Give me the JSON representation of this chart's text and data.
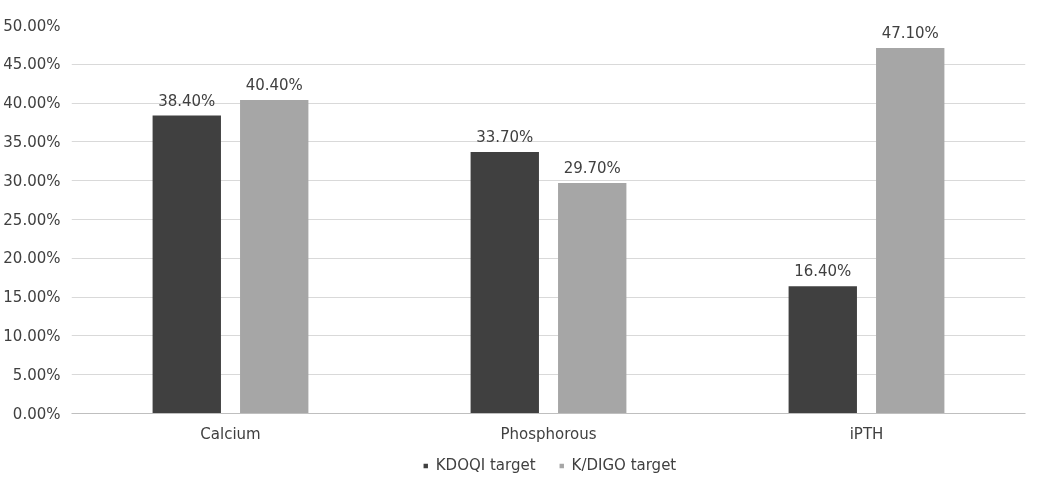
{
  "chart_data": {
    "type": "bar",
    "categories": [
      "Calcium",
      "Phosphorous",
      "iPTH"
    ],
    "series": [
      {
        "name": "KDOQI target",
        "color": "#404040",
        "values": [
          38.4,
          33.7,
          16.4
        ],
        "value_labels": [
          "38.40%",
          "33.70%",
          "16.40%"
        ]
      },
      {
        "name": "K/DIGO target",
        "color": "#a6a6a6",
        "values": [
          40.4,
          29.7,
          47.1
        ],
        "value_labels": [
          "40.40%",
          "29.70%",
          "47.10%"
        ]
      }
    ],
    "ylim": [
      0,
      50
    ],
    "yticks": [
      {
        "value": 0,
        "label": "0.00%"
      },
      {
        "value": 5,
        "label": "5.00%"
      },
      {
        "value": 10,
        "label": "10.00%"
      },
      {
        "value": 15,
        "label": "15.00%"
      },
      {
        "value": 20,
        "label": "20.00%"
      },
      {
        "value": 25,
        "label": "25.00%"
      },
      {
        "value": 30,
        "label": "30.00%"
      },
      {
        "value": 35,
        "label": "35.00%"
      },
      {
        "value": 40,
        "label": "40.00%"
      },
      {
        "value": 45,
        "label": "45.00%"
      },
      {
        "value": 50,
        "label": "50.00%"
      }
    ],
    "grid": "y",
    "legend": "bottom"
  }
}
